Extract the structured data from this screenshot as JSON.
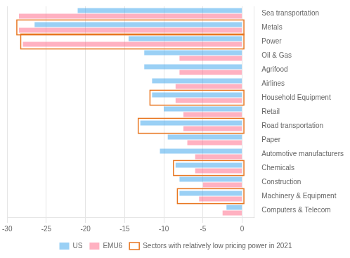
{
  "chart_data": {
    "type": "bar",
    "orientation": "horizontal",
    "categories": [
      "Sea transportation",
      "Metals",
      "Power",
      "Oil & Gas",
      "Agrifood",
      "Airlines",
      "Household Equipment",
      "Retail",
      "Road transportation",
      "Paper",
      "Automotive manufacturers",
      "Chemicals",
      "Construction",
      "Machinery & Equipment",
      "Computers & Telecom"
    ],
    "series": [
      {
        "name": "US",
        "values": [
          -21.0,
          -26.5,
          -14.5,
          -12.5,
          -12.5,
          -11.5,
          -11.5,
          -10.0,
          -13.0,
          -9.5,
          -10.5,
          -8.5,
          -8.0,
          -8.0,
          -2.0
        ]
      },
      {
        "name": "EMU6",
        "values": [
          -28.5,
          -28.5,
          -28.0,
          -8.0,
          -8.0,
          -8.5,
          -8.5,
          -7.5,
          -7.5,
          -7.0,
          -6.0,
          -6.0,
          -5.0,
          -5.5,
          -2.5
        ]
      }
    ],
    "highlight": {
      "label": "Sectors with relatively low pricing power in 2021",
      "color": "#e87722",
      "categories": [
        "Metals",
        "Power",
        "Household Equipment",
        "Road transportation",
        "Chemicals",
        "Machinery & Equipment"
      ]
    },
    "xlim": [
      -30,
      1.5
    ],
    "xticks": [
      -30,
      -25,
      -20,
      -15,
      -10,
      -5,
      0
    ],
    "grid": true,
    "legend": "bottom"
  }
}
